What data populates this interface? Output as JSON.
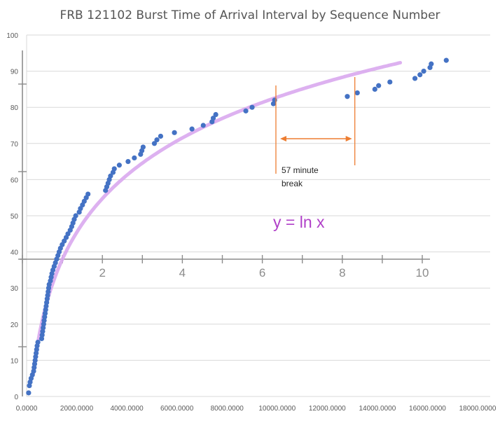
{
  "chart_data": {
    "type": "scatter",
    "title": "FRB 121102 Burst Time of Arrival Interval by Sequence Number",
    "x_ticks": [
      "0.0000",
      "2000.0000",
      "4000.0000",
      "6000.0000",
      "8000.0000",
      "10000.0000",
      "12000.0000",
      "14000.0000",
      "16000.0000",
      "18000.0000"
    ],
    "y_ticks": [
      "0",
      "10",
      "20",
      "30",
      "40",
      "50",
      "60",
      "70",
      "80",
      "90",
      "100"
    ],
    "xlim": [
      0,
      18000
    ],
    "ylim": [
      0,
      100
    ],
    "grid": true,
    "series": [
      {
        "color": "#4472c4",
        "points": [
          [
            80,
            1
          ],
          [
            110,
            3
          ],
          [
            140,
            4
          ],
          [
            180,
            5
          ],
          [
            230,
            6
          ],
          [
            280,
            7
          ],
          [
            300,
            8
          ],
          [
            320,
            9
          ],
          [
            340,
            10
          ],
          [
            360,
            11
          ],
          [
            380,
            12
          ],
          [
            400,
            13
          ],
          [
            420,
            14
          ],
          [
            450,
            15
          ],
          [
            600,
            16
          ],
          [
            620,
            17
          ],
          [
            640,
            18
          ],
          [
            660,
            19
          ],
          [
            680,
            20
          ],
          [
            700,
            21
          ],
          [
            720,
            22
          ],
          [
            740,
            23
          ],
          [
            760,
            24
          ],
          [
            780,
            25
          ],
          [
            800,
            26
          ],
          [
            820,
            27
          ],
          [
            840,
            28
          ],
          [
            860,
            29
          ],
          [
            880,
            30
          ],
          [
            900,
            31
          ],
          [
            950,
            32
          ],
          [
            980,
            33
          ],
          [
            1010,
            34
          ],
          [
            1050,
            35
          ],
          [
            1100,
            36
          ],
          [
            1150,
            37
          ],
          [
            1200,
            38
          ],
          [
            1250,
            39
          ],
          [
            1300,
            40
          ],
          [
            1350,
            41
          ],
          [
            1420,
            42
          ],
          [
            1500,
            43
          ],
          [
            1580,
            44
          ],
          [
            1650,
            45
          ],
          [
            1740,
            46
          ],
          [
            1800,
            47
          ],
          [
            1850,
            48
          ],
          [
            1900,
            49
          ],
          [
            1960,
            50
          ],
          [
            2100,
            51
          ],
          [
            2150,
            52
          ],
          [
            2230,
            53
          ],
          [
            2300,
            54
          ],
          [
            2380,
            55
          ],
          [
            2450,
            56
          ],
          [
            3150,
            57
          ],
          [
            3200,
            58
          ],
          [
            3250,
            59
          ],
          [
            3300,
            60
          ],
          [
            3350,
            61
          ],
          [
            3450,
            62
          ],
          [
            3500,
            63
          ],
          [
            3700,
            64
          ],
          [
            4050,
            65
          ],
          [
            4300,
            66
          ],
          [
            4550,
            67
          ],
          [
            4600,
            68
          ],
          [
            4650,
            69
          ],
          [
            5100,
            70
          ],
          [
            5200,
            71
          ],
          [
            5350,
            72
          ],
          [
            5900,
            73
          ],
          [
            6600,
            74
          ],
          [
            7050,
            75
          ],
          [
            7400,
            76
          ],
          [
            7450,
            77
          ],
          [
            7550,
            78
          ],
          [
            8750,
            79
          ],
          [
            9000,
            80
          ],
          [
            9850,
            81
          ],
          [
            9900,
            82
          ],
          [
            12800,
            83
          ],
          [
            13200,
            84
          ],
          [
            13900,
            85
          ],
          [
            14050,
            86
          ],
          [
            14500,
            87
          ],
          [
            15500,
            88
          ],
          [
            15700,
            89
          ],
          [
            15850,
            90
          ],
          [
            16100,
            91
          ],
          [
            16150,
            92
          ],
          [
            16750,
            93
          ]
        ]
      }
    ],
    "curve": {
      "label": "y = ln x",
      "color": "#d9a9ee"
    },
    "overlay_axis": {
      "ticks": [
        "2",
        "4",
        "6",
        "8",
        "10"
      ]
    },
    "annotation": {
      "text_line1": "57 minute",
      "text_line2": "break",
      "color": "#ed7d31"
    }
  }
}
